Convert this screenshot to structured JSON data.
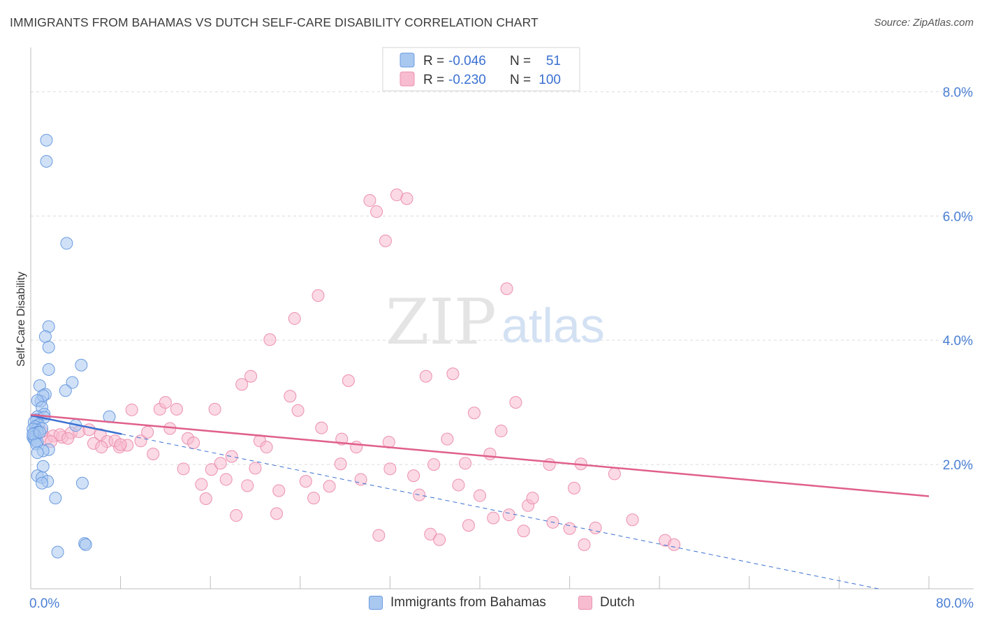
{
  "title": "IMMIGRANTS FROM BAHAMAS VS DUTCH SELF-CARE DISABILITY CORRELATION CHART",
  "source": "Source: ZipAtlas.com",
  "watermark": {
    "zip": "ZIP",
    "atlas": "atlas"
  },
  "legend": {
    "rows": [
      {
        "r_label": "R =",
        "r_value": "-0.046",
        "n_label": "N =",
        "n_value": "51"
      },
      {
        "r_label": "R =",
        "r_value": "-0.230",
        "n_label": "N =",
        "n_value": "100"
      }
    ]
  },
  "bottom_legend": {
    "series1": "Immigrants from Bahamas",
    "series2": "Dutch"
  },
  "colors": {
    "bahamas_fill": "#a9c8f0",
    "bahamas_stroke": "#6b9be0",
    "bahamas_line": "#3a70d0",
    "dutch_fill": "#f7bcd0",
    "dutch_stroke": "#ec8fae",
    "dutch_line": "#e0608a",
    "tick_label": "#4a7fd4",
    "grid": "#dcdcdc"
  },
  "chart_data": {
    "type": "scatter",
    "title": "IMMIGRANTS FROM BAHAMAS VS DUTCH SELF-CARE DISABILITY CORRELATION CHART",
    "xlabel": "",
    "ylabel": "Self-Care Disability",
    "xlim": [
      0,
      80
    ],
    "ylim": [
      0,
      8.6
    ],
    "x_tick_labels": [
      "0.0%",
      "80.0%"
    ],
    "y_ticks": [
      2,
      4,
      6,
      8
    ],
    "y_tick_labels": [
      "2.0%",
      "4.0%",
      "6.0%",
      "8.0%"
    ],
    "grid": true,
    "legend_position": "top-center",
    "series": [
      {
        "name": "Immigrants from Bahamas",
        "color": "#6b9be0",
        "points": [
          [
            1.4,
            7.22
          ],
          [
            1.4,
            6.88
          ],
          [
            3.2,
            5.56
          ],
          [
            1.6,
            4.22
          ],
          [
            1.3,
            4.06
          ],
          [
            1.6,
            3.89
          ],
          [
            4.5,
            3.6
          ],
          [
            1.6,
            3.53
          ],
          [
            3.7,
            3.32
          ],
          [
            0.8,
            3.27
          ],
          [
            3.1,
            3.19
          ],
          [
            1.3,
            3.13
          ],
          [
            0.9,
            3.02
          ],
          [
            1.1,
            3.11
          ],
          [
            0.6,
            3.03
          ],
          [
            1.0,
            2.92
          ],
          [
            1.2,
            2.81
          ],
          [
            0.6,
            2.77
          ],
          [
            1.2,
            2.76
          ],
          [
            0.5,
            2.72
          ],
          [
            0.3,
            2.68
          ],
          [
            0.7,
            2.64
          ],
          [
            0.4,
            2.61
          ],
          [
            1.0,
            2.58
          ],
          [
            0.5,
            2.56
          ],
          [
            0.2,
            2.57
          ],
          [
            0.6,
            2.52
          ],
          [
            0.3,
            2.5
          ],
          [
            0.4,
            2.46
          ],
          [
            0.2,
            2.44
          ],
          [
            0.3,
            2.41
          ],
          [
            0.4,
            2.38
          ],
          [
            0.6,
            2.36
          ],
          [
            0.5,
            2.33
          ],
          [
            1.6,
            2.24
          ],
          [
            1.1,
            2.22
          ],
          [
            0.6,
            2.19
          ],
          [
            1.1,
            1.97
          ],
          [
            0.6,
            1.82
          ],
          [
            1.0,
            1.79
          ],
          [
            1.5,
            1.73
          ],
          [
            1.0,
            1.7
          ],
          [
            4.6,
            1.7
          ],
          [
            2.2,
            1.46
          ],
          [
            4.8,
            0.73
          ],
          [
            4.9,
            0.71
          ],
          [
            2.4,
            0.59
          ],
          [
            7.0,
            2.77
          ],
          [
            4.0,
            2.63
          ],
          [
            0.2,
            2.49
          ],
          [
            0.8,
            2.52
          ]
        ]
      },
      {
        "name": "Dutch",
        "color": "#ec8fae",
        "points": [
          [
            1.4,
            2.41
          ],
          [
            2.0,
            2.46
          ],
          [
            2.8,
            2.44
          ],
          [
            3.6,
            2.51
          ],
          [
            4.3,
            2.53
          ],
          [
            5.2,
            2.56
          ],
          [
            6.2,
            2.48
          ],
          [
            6.8,
            2.37
          ],
          [
            7.9,
            2.28
          ],
          [
            8.6,
            2.31
          ],
          [
            9.0,
            2.88
          ],
          [
            9.8,
            2.38
          ],
          [
            10.4,
            2.52
          ],
          [
            10.9,
            2.17
          ],
          [
            11.5,
            2.89
          ],
          [
            12.0,
            3.0
          ],
          [
            12.4,
            2.58
          ],
          [
            13.0,
            2.89
          ],
          [
            13.6,
            1.93
          ],
          [
            14.0,
            2.42
          ],
          [
            14.5,
            2.35
          ],
          [
            15.2,
            1.68
          ],
          [
            15.6,
            1.45
          ],
          [
            16.1,
            1.92
          ],
          [
            16.4,
            2.89
          ],
          [
            16.9,
            2.02
          ],
          [
            17.4,
            1.76
          ],
          [
            17.9,
            2.13
          ],
          [
            18.3,
            1.18
          ],
          [
            18.8,
            3.29
          ],
          [
            19.3,
            1.66
          ],
          [
            19.6,
            3.42
          ],
          [
            20.0,
            1.94
          ],
          [
            20.4,
            2.38
          ],
          [
            21.0,
            2.28
          ],
          [
            21.3,
            4.01
          ],
          [
            21.9,
            1.21
          ],
          [
            22.1,
            1.58
          ],
          [
            23.1,
            3.1
          ],
          [
            23.5,
            4.35
          ],
          [
            23.8,
            2.87
          ],
          [
            24.5,
            1.73
          ],
          [
            25.2,
            1.46
          ],
          [
            25.6,
            4.72
          ],
          [
            25.9,
            2.59
          ],
          [
            26.6,
            1.65
          ],
          [
            27.6,
            2.01
          ],
          [
            27.7,
            2.41
          ],
          [
            28.3,
            3.35
          ],
          [
            29.0,
            2.28
          ],
          [
            29.4,
            1.76
          ],
          [
            30.2,
            6.25
          ],
          [
            30.8,
            6.07
          ],
          [
            31.0,
            0.86
          ],
          [
            31.6,
            5.6
          ],
          [
            31.9,
            2.36
          ],
          [
            32.0,
            1.93
          ],
          [
            32.6,
            6.34
          ],
          [
            33.5,
            6.28
          ],
          [
            34.1,
            1.82
          ],
          [
            34.6,
            1.51
          ],
          [
            35.2,
            3.42
          ],
          [
            35.6,
            0.88
          ],
          [
            35.9,
            2.0
          ],
          [
            36.4,
            0.79
          ],
          [
            37.1,
            2.41
          ],
          [
            37.6,
            3.46
          ],
          [
            38.1,
            1.67
          ],
          [
            38.7,
            2.02
          ],
          [
            39.0,
            1.02
          ],
          [
            39.5,
            2.83
          ],
          [
            40.0,
            1.5
          ],
          [
            40.9,
            2.17
          ],
          [
            41.2,
            1.14
          ],
          [
            41.9,
            2.54
          ],
          [
            42.4,
            4.83
          ],
          [
            42.6,
            1.19
          ],
          [
            43.2,
            3.0
          ],
          [
            43.9,
            0.93
          ],
          [
            44.3,
            1.34
          ],
          [
            44.7,
            1.46
          ],
          [
            46.2,
            2.0
          ],
          [
            46.5,
            1.07
          ],
          [
            48.0,
            0.97
          ],
          [
            48.4,
            1.62
          ],
          [
            49.0,
            2.01
          ],
          [
            49.3,
            0.71
          ],
          [
            50.3,
            0.98
          ],
          [
            53.6,
            1.11
          ],
          [
            56.5,
            0.78
          ],
          [
            57.3,
            0.71
          ],
          [
            52.0,
            1.85
          ],
          [
            1.0,
            2.53
          ],
          [
            1.8,
            2.37
          ],
          [
            2.6,
            2.48
          ],
          [
            3.3,
            2.42
          ],
          [
            5.6,
            2.34
          ],
          [
            6.3,
            2.28
          ],
          [
            7.5,
            2.38
          ],
          [
            8.0,
            2.32
          ]
        ]
      }
    ],
    "trend_lines": [
      {
        "series": "Immigrants from Bahamas",
        "x": [
          0,
          8.1
        ],
        "y": [
          2.79,
          2.49
        ],
        "style": "solid"
      },
      {
        "series": "Immigrants from Bahamas",
        "x": [
          8.1,
          75.5
        ],
        "y": [
          2.49,
          0.0
        ],
        "style": "dashed"
      },
      {
        "series": "Dutch",
        "x": [
          0,
          80
        ],
        "y": [
          2.8,
          1.49
        ],
        "style": "solid"
      }
    ]
  }
}
